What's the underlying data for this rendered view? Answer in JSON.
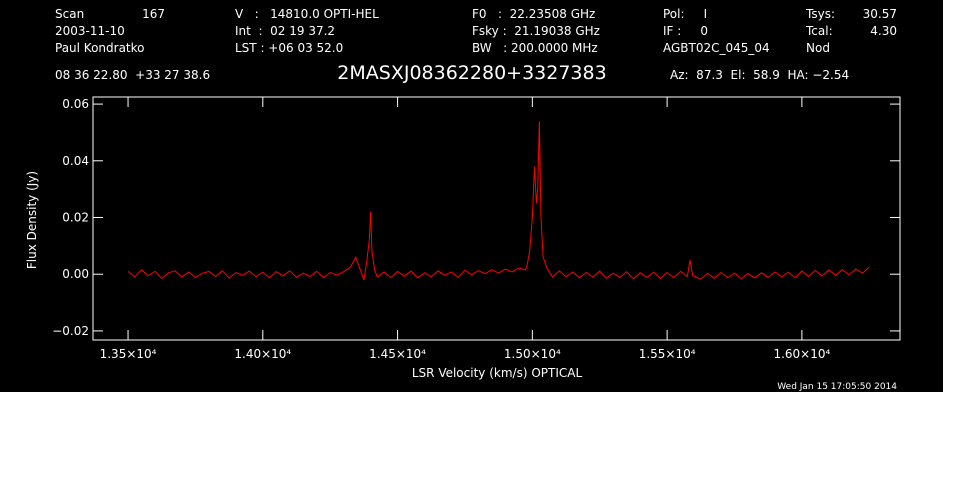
{
  "chart_data": {
    "type": "line",
    "title": "2MASXJ08362280+3327383",
    "xlabel": "LSR Velocity (km/s) OPTICAL",
    "ylabel": "Flux Density (Jy)",
    "footer": "Wed Jan 15 17:05:50 2014",
    "annotations": [
      "Scan",
      "167",
      "2003-11-10",
      "Paul Kondratko",
      "V   :   14810.0 OPTI-HEL",
      "Int  :  02 19 37.2",
      "LST : +06 03 52.0",
      "F0   :  22.23508 GHz",
      "Fsky :  21.19038 GHz",
      "BW   : 200.0000 MHz",
      "Pol:     I",
      "IF :     0",
      "AGBT02C_045_04",
      "Tsys:",
      "30.57",
      "Tcal:",
      "4.30",
      "Nod",
      "08 36 22.80  +33 27 38.6",
      "Az:  87.3  El:  58.9  HA: −2.54"
    ],
    "xlim": [
      13370,
      16364
    ],
    "ylim": [
      -0.0232,
      0.0625
    ],
    "xticks": [
      {
        "value": 13500,
        "label": "1.35×10⁴"
      },
      {
        "value": 14000,
        "label": "1.40×10⁴"
      },
      {
        "value": 14500,
        "label": "1.45×10⁴"
      },
      {
        "value": 15000,
        "label": "1.50×10⁴"
      },
      {
        "value": 15500,
        "label": "1.55×10⁴"
      },
      {
        "value": 16000,
        "label": "1.60×10⁴"
      }
    ],
    "yticks": [
      {
        "value": -0.02,
        "label": "−0.02"
      },
      {
        "value": 0,
        "label": "0.00"
      },
      0.02,
      0.04,
      0.06
    ],
    "grid": false,
    "series": [
      {
        "name": "spectrum",
        "color": "#ff0000",
        "x": [
          13500,
          13525,
          13550,
          13575,
          13600,
          13625,
          13650,
          13675,
          13700,
          13725,
          13750,
          13775,
          13800,
          13825,
          13850,
          13875,
          13900,
          13925,
          13950,
          13975,
          14000,
          14025,
          14050,
          14075,
          14100,
          14125,
          14150,
          14175,
          14200,
          14225,
          14250,
          14275,
          14300,
          14325,
          14345,
          14360,
          14375,
          14385,
          14395,
          14400,
          14405,
          14415,
          14425,
          14450,
          14475,
          14500,
          14525,
          14550,
          14575,
          14600,
          14625,
          14650,
          14675,
          14700,
          14725,
          14750,
          14775,
          14800,
          14825,
          14850,
          14875,
          14900,
          14925,
          14950,
          14975,
          14980,
          14990,
          15000,
          15008,
          15015,
          15020,
          15026,
          15032,
          15040,
          15055,
          15075,
          15100,
          15125,
          15150,
          15175,
          15200,
          15225,
          15250,
          15275,
          15300,
          15325,
          15350,
          15375,
          15400,
          15425,
          15450,
          15475,
          15500,
          15525,
          15550,
          15575,
          15585,
          15595,
          15625,
          15650,
          15675,
          15700,
          15725,
          15750,
          15775,
          15800,
          15825,
          15850,
          15875,
          15900,
          15925,
          15950,
          15975,
          16000,
          16025,
          16050,
          16075,
          16100,
          16125,
          16150,
          16175,
          16200,
          16225,
          16250
        ],
        "values": [
          0.001,
          -0.001,
          0.0015,
          -0.0005,
          0.001,
          -0.0015,
          0.0005,
          0.0012,
          -0.001,
          0.0008,
          -0.0012,
          0.0003,
          0.001,
          -0.0008,
          0.0012,
          -0.0014,
          0.0006,
          -0.0004,
          0.0011,
          -0.0009,
          0.0007,
          -0.0013,
          0.0009,
          -0.0006,
          0.0012,
          -0.0011,
          0.0004,
          -0.0008,
          0.001,
          -0.0012,
          0.0006,
          -0.0003,
          0.0009,
          0.0025,
          0.006,
          0.002,
          -0.002,
          0.004,
          0.012,
          0.022,
          0.008,
          0.0015,
          -0.001,
          0.0008,
          -0.0012,
          0.001,
          -0.0007,
          0.0011,
          -0.0013,
          0.0005,
          -0.0009,
          0.0012,
          -0.0004,
          0.0008,
          -0.0011,
          0.0014,
          -0.0002,
          0.0013,
          0.0002,
          0.0016,
          0.0004,
          0.0018,
          0.0008,
          0.0022,
          0.0015,
          0.003,
          0.008,
          0.02,
          0.038,
          0.025,
          0.03,
          0.054,
          0.02,
          0.006,
          0.002,
          -0.001,
          0.0012,
          -0.0009,
          0.0008,
          -0.0013,
          0.0006,
          -0.001,
          0.0011,
          -0.0014,
          0.0004,
          -0.0012,
          0.0009,
          -0.0016,
          0.0005,
          -0.0011,
          0.0007,
          -0.0015,
          0.0006,
          -0.0012,
          0.001,
          -0.0008,
          0.005,
          -0.0005,
          -0.0017,
          0.0003,
          -0.0014,
          0.0006,
          -0.0012,
          0.0004,
          -0.0016,
          0.0002,
          -0.0013,
          0.0005,
          -0.0011,
          0.0008,
          -0.0009,
          0.0007,
          -0.0012,
          0.0011,
          -0.0008,
          0.0013,
          -0.0006,
          0.0015,
          -0.0004,
          0.0016,
          -0.0002,
          0.0018,
          0.0004,
          0.0025
        ]
      }
    ]
  }
}
